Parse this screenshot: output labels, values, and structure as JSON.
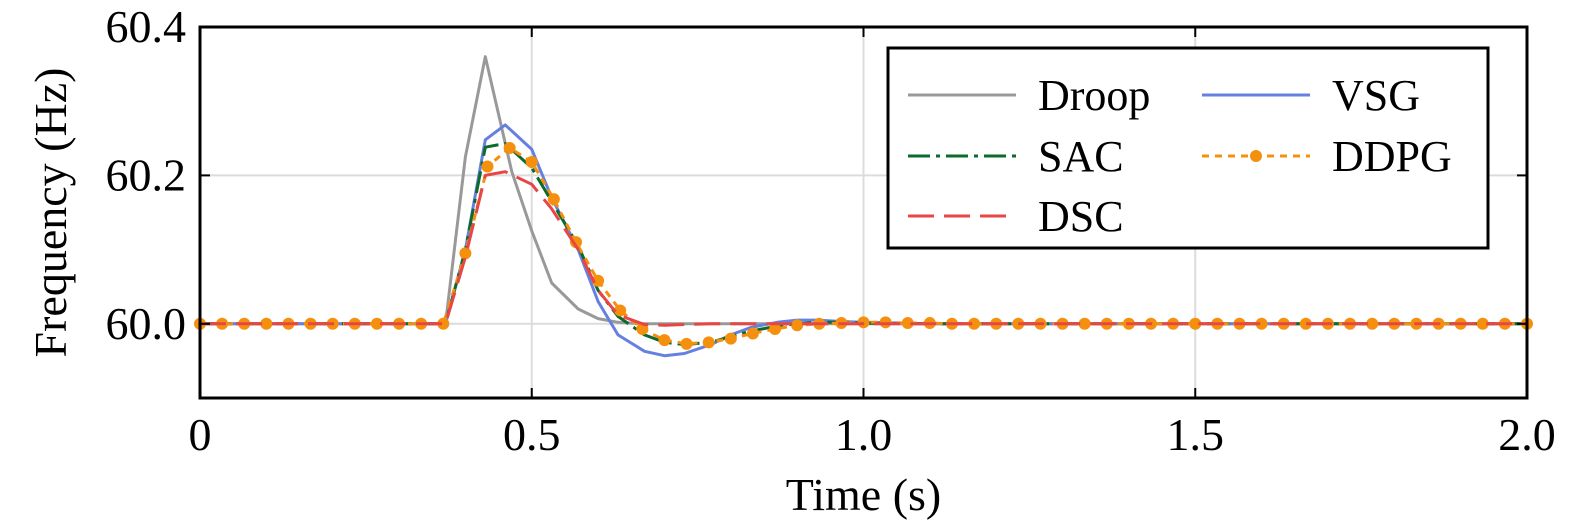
{
  "chart_data": {
    "type": "line",
    "title": "",
    "xlabel": "Time (s)",
    "ylabel": "Frequency (Hz)",
    "xlim": [
      0,
      2.0
    ],
    "ylim": [
      59.9,
      60.4
    ],
    "xticks": [
      0,
      0.5,
      1.0,
      1.5,
      2.0
    ],
    "xtick_labels": [
      "0",
      "0.5",
      "1.0",
      "1.5",
      "2.0"
    ],
    "yticks": [
      60.0,
      60.2,
      60.4
    ],
    "ytick_labels": [
      "60.0",
      "60.2",
      "60.4"
    ],
    "grid": true,
    "legend_position": "top-right",
    "legend_columns": 2,
    "series": [
      {
        "name": "Droop",
        "color": "#999999",
        "style": "solid",
        "x": [
          0,
          0.37,
          0.4,
          0.43,
          0.47,
          0.5,
          0.53,
          0.57,
          0.6,
          0.63,
          0.67,
          0.7,
          0.73,
          0.77,
          0.8,
          0.9,
          1.0,
          1.1,
          1.2,
          1.4,
          1.6,
          1.8,
          2.0
        ],
        "values": [
          60.0,
          60.0,
          60.225,
          60.36,
          60.205,
          60.125,
          60.055,
          60.02,
          60.007,
          60.002,
          60.0,
          60.0,
          60.0,
          60.0,
          60.0,
          60.0,
          60.0,
          60.0,
          60.0,
          60.0,
          60.0,
          60.0,
          60.0
        ]
      },
      {
        "name": "VSG",
        "color": "#6680E0",
        "style": "solid",
        "x": [
          0,
          0.37,
          0.4,
          0.43,
          0.46,
          0.5,
          0.53,
          0.57,
          0.6,
          0.63,
          0.67,
          0.7,
          0.73,
          0.77,
          0.8,
          0.83,
          0.87,
          0.9,
          0.93,
          0.97,
          1.0,
          1.1,
          1.2,
          1.4,
          1.6,
          1.8,
          2.0
        ],
        "values": [
          60.0,
          60.0,
          60.1,
          60.248,
          60.268,
          60.235,
          60.17,
          60.1,
          60.03,
          59.985,
          59.963,
          59.957,
          59.96,
          59.972,
          59.985,
          59.995,
          60.002,
          60.005,
          60.005,
          60.003,
          60.002,
          60.0,
          60.0,
          60.0,
          60.0,
          60.0,
          60.0
        ]
      },
      {
        "name": "SAC",
        "color": "#0B6B2D",
        "style": "dashdot",
        "x": [
          0,
          0.37,
          0.4,
          0.43,
          0.46,
          0.5,
          0.53,
          0.57,
          0.6,
          0.63,
          0.67,
          0.7,
          0.73,
          0.77,
          0.8,
          0.83,
          0.87,
          0.9,
          0.93,
          0.97,
          1.0,
          1.1,
          1.2,
          1.4,
          1.6,
          1.8,
          2.0
        ],
        "values": [
          60.0,
          60.0,
          60.1,
          60.238,
          60.243,
          60.21,
          60.165,
          60.105,
          60.045,
          60.01,
          59.985,
          59.975,
          59.972,
          59.975,
          59.983,
          59.99,
          59.997,
          60.0,
          60.002,
          60.002,
          60.001,
          60.0,
          60.0,
          60.0,
          60.0,
          60.0,
          60.0
        ]
      },
      {
        "name": "DDPG",
        "color": "#F5900F",
        "style": "dotted-markers",
        "x": [
          0,
          0.0333,
          0.0667,
          0.1,
          0.1333,
          0.1667,
          0.2,
          0.2333,
          0.2667,
          0.3,
          0.3333,
          0.3667,
          0.4,
          0.4333,
          0.4667,
          0.5,
          0.5333,
          0.5667,
          0.6,
          0.6333,
          0.6667,
          0.7,
          0.7333,
          0.7667,
          0.8,
          0.8333,
          0.8667,
          0.9,
          0.9333,
          0.9667,
          1.0,
          1.0333,
          1.0667,
          1.1,
          1.1333,
          1.1667,
          1.2,
          1.2333,
          1.2667,
          1.3,
          1.3333,
          1.3667,
          1.4,
          1.4333,
          1.4667,
          1.5,
          1.5333,
          1.5667,
          1.6,
          1.6333,
          1.6667,
          1.7,
          1.7333,
          1.7667,
          1.8,
          1.8333,
          1.8667,
          1.9,
          1.9333,
          1.9667,
          2.0
        ],
        "values": [
          60.0,
          60.0,
          60.0,
          60.0,
          60.0,
          60.0,
          60.0,
          60.0,
          60.0,
          60.0,
          60.0,
          60.0,
          60.095,
          60.212,
          60.237,
          60.218,
          60.168,
          60.11,
          60.058,
          60.018,
          59.993,
          59.978,
          59.973,
          59.975,
          59.98,
          59.987,
          59.993,
          59.998,
          60.0,
          60.001,
          60.002,
          60.002,
          60.001,
          60.001,
          60.0,
          60.0,
          60.0,
          60.0,
          60.0,
          60.0,
          60.0,
          60.0,
          60.0,
          60.0,
          60.0,
          60.0,
          60.0,
          60.0,
          60.0,
          60.0,
          60.0,
          60.0,
          60.0,
          60.0,
          60.0,
          60.0,
          60.0,
          60.0,
          60.0,
          60.0,
          60.0
        ]
      },
      {
        "name": "DSC",
        "color": "#E84545",
        "style": "longdash",
        "x": [
          0,
          0.37,
          0.4,
          0.43,
          0.46,
          0.5,
          0.53,
          0.57,
          0.6,
          0.63,
          0.67,
          0.7,
          0.73,
          0.77,
          0.8,
          0.9,
          1.0,
          1.1,
          1.2,
          1.4,
          1.6,
          1.8,
          2.0
        ],
        "values": [
          60.0,
          60.0,
          60.09,
          60.2,
          60.205,
          60.188,
          60.155,
          60.1,
          60.045,
          60.012,
          59.999,
          59.998,
          59.999,
          60.0,
          60.0,
          60.0,
          60.0,
          60.0,
          60.0,
          60.0,
          60.0,
          60.0,
          60.0
        ]
      }
    ],
    "legend": [
      {
        "name": "Droop",
        "color": "#999999",
        "style": "solid"
      },
      {
        "name": "VSG",
        "color": "#6680E0",
        "style": "solid"
      },
      {
        "name": "SAC",
        "color": "#0B6B2D",
        "style": "dashdot"
      },
      {
        "name": "DDPG",
        "color": "#F5900F",
        "style": "dotted-markers"
      },
      {
        "name": "DSC",
        "color": "#E84545",
        "style": "longdash"
      }
    ]
  }
}
